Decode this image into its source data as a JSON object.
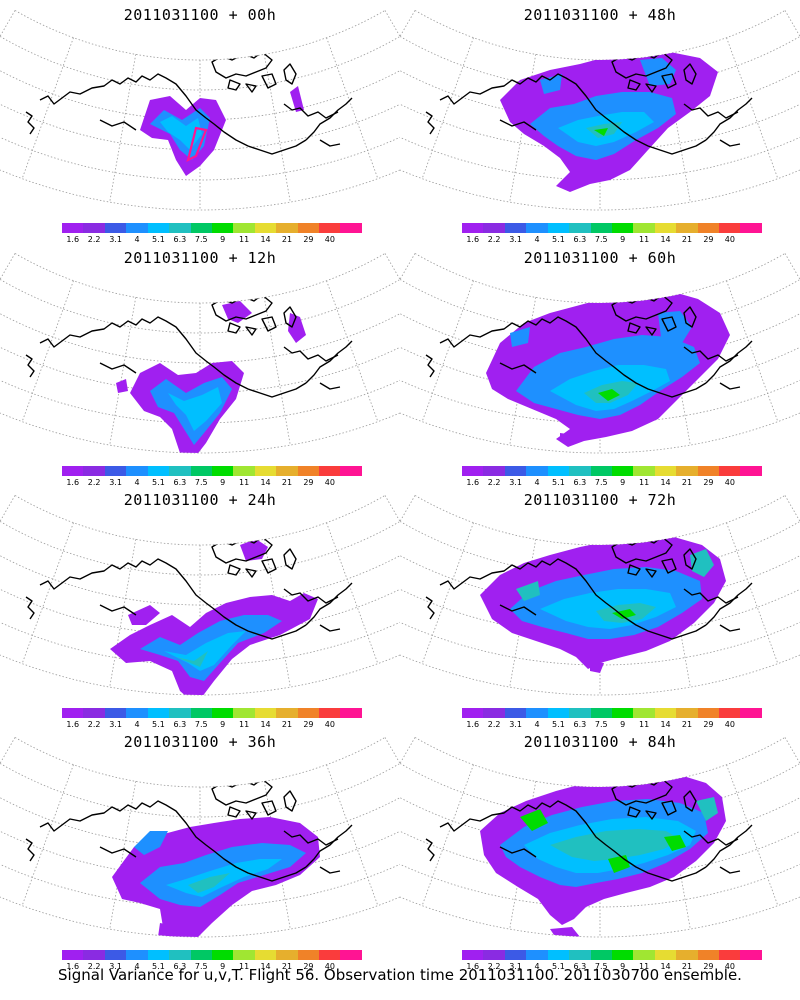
{
  "panels": [
    {
      "title": "2011031100 + 00h",
      "lead_hours": 0
    },
    {
      "title": "2011031100 + 48h",
      "lead_hours": 48
    },
    {
      "title": "2011031100 + 12h",
      "lead_hours": 12
    },
    {
      "title": "2011031100 + 60h",
      "lead_hours": 60
    },
    {
      "title": "2011031100 + 24h",
      "lead_hours": 24
    },
    {
      "title": "2011031100 + 72h",
      "lead_hours": 72
    },
    {
      "title": "2011031100 + 36h",
      "lead_hours": 36
    },
    {
      "title": "2011031100 + 84h",
      "lead_hours": 84
    }
  ],
  "colorbar": {
    "labels": [
      "1.6",
      "2.2",
      "3.1",
      "4",
      "5.1",
      "6.3",
      "7.5",
      "9",
      "11",
      "14",
      "21",
      "29",
      "40"
    ],
    "colors": [
      "#a020f0",
      "#8a2be2",
      "#3c5ae6",
      "#1e90ff",
      "#00bfff",
      "#20c0c0",
      "#00c864",
      "#00dc00",
      "#a0e632",
      "#e6dc32",
      "#e6af2d",
      "#f08228",
      "#fa3c3c",
      "#ff1493"
    ]
  },
  "caption": "Signal Variance for u,v,T. Flight 56. Observation time 2011031100. 2011030700 ensemble."
}
